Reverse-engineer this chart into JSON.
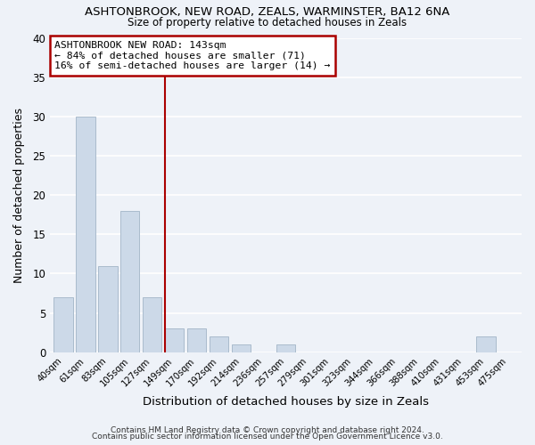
{
  "title": "ASHTONBROOK, NEW ROAD, ZEALS, WARMINSTER, BA12 6NA",
  "subtitle": "Size of property relative to detached houses in Zeals",
  "xlabel": "Distribution of detached houses by size in Zeals",
  "ylabel": "Number of detached properties",
  "bin_labels": [
    "40sqm",
    "61sqm",
    "83sqm",
    "105sqm",
    "127sqm",
    "149sqm",
    "170sqm",
    "192sqm",
    "214sqm",
    "236sqm",
    "257sqm",
    "279sqm",
    "301sqm",
    "323sqm",
    "344sqm",
    "366sqm",
    "388sqm",
    "410sqm",
    "431sqm",
    "453sqm",
    "475sqm"
  ],
  "bar_heights": [
    7,
    30,
    11,
    18,
    7,
    3,
    3,
    2,
    1,
    0,
    1,
    0,
    0,
    0,
    0,
    0,
    0,
    0,
    0,
    2,
    0
  ],
  "bar_color": "#ccd9e8",
  "bar_edge_color": "#aabbcc",
  "highlight_bar_index": 5,
  "highlight_color": "#aa0000",
  "annotation_title": "ASHTONBROOK NEW ROAD: 143sqm",
  "annotation_line1": "← 84% of detached houses are smaller (71)",
  "annotation_line2": "16% of semi-detached houses are larger (14) →",
  "annotation_box_color": "#ffffff",
  "annotation_box_edge": "#aa0000",
  "ylim": [
    0,
    40
  ],
  "yticks": [
    0,
    5,
    10,
    15,
    20,
    25,
    30,
    35,
    40
  ],
  "footer1": "Contains HM Land Registry data © Crown copyright and database right 2024.",
  "footer2": "Contains public sector information licensed under the Open Government Licence v3.0.",
  "background_color": "#eef2f8",
  "grid_color": "#ffffff"
}
